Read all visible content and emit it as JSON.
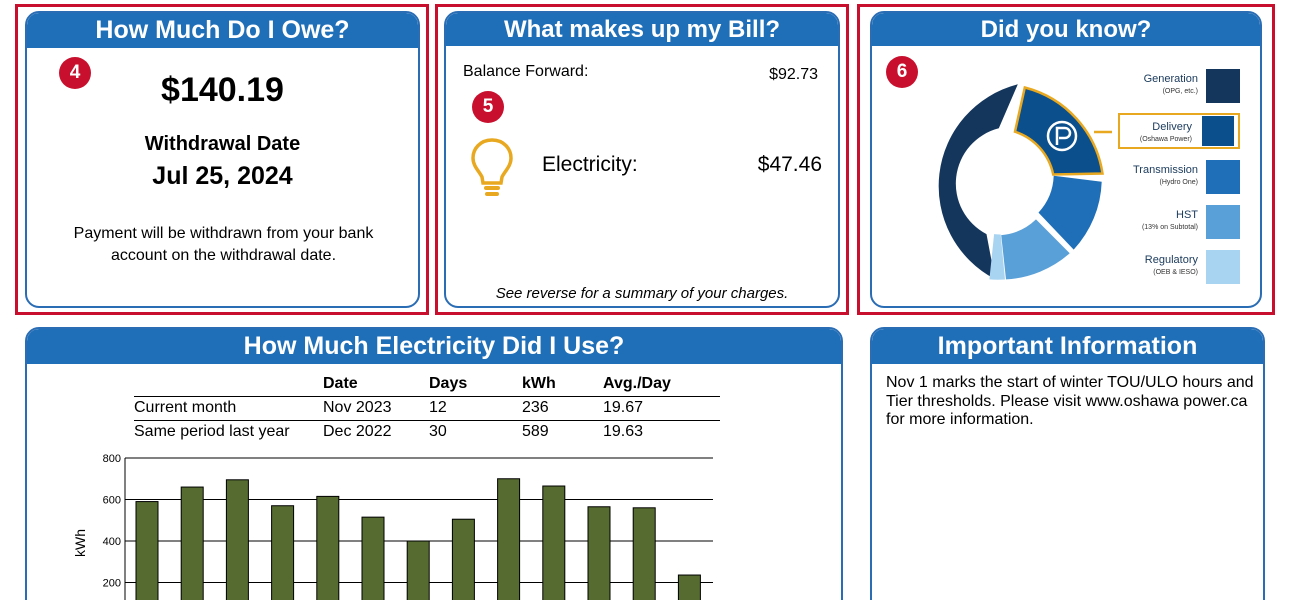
{
  "owe": {
    "title": "How Much Do I Owe?",
    "marker": "4",
    "amount": "$140.19",
    "withdrawal_label": "Withdrawal Date",
    "withdrawal_date": "Jul 25, 2024",
    "note": "Payment will be withdrawn from your bank account on the withdrawal date."
  },
  "bill": {
    "title": "What makes up my Bill?",
    "marker": "5",
    "balance_forward_label": "Balance Forward:",
    "balance_forward_value": "$92.73",
    "electricity_label": "Electricity:",
    "electricity_value": "$47.46",
    "footnote": "See reverse for a summary of your charges.",
    "icon": "lightbulb-icon",
    "icon_color": "#e8a820"
  },
  "did_you_know": {
    "title": "Did you know?",
    "marker": "6",
    "center_logo": "oshawa-power-logo",
    "highlight_color": "#e8a820",
    "legend": [
      {
        "name": "Generation",
        "sub": "(OPG, etc.)",
        "color": "#14365c"
      },
      {
        "name": "Delivery",
        "sub": "(Oshawa Power)",
        "color": "#0b4f8c"
      },
      {
        "name": "Transmission",
        "sub": "(Hydro One)",
        "color": "#1f6fb8"
      },
      {
        "name": "HST",
        "sub": "(13% on Subtotal)",
        "color": "#5aa0d8"
      },
      {
        "name": "Regulatory",
        "sub": "(OEB & IESO)",
        "color": "#a8d4f2"
      }
    ]
  },
  "usage": {
    "title": "How Much Electricity Did I Use?",
    "table": {
      "headers": [
        "",
        "Date",
        "Days",
        "kWh",
        "Avg./Day"
      ],
      "rows": [
        [
          "Current month",
          "Nov 2023",
          "12",
          "236",
          "19.67"
        ],
        [
          "Same period last year",
          "Dec 2022",
          "30",
          "589",
          "19.63"
        ]
      ]
    }
  },
  "chart_data": {
    "type": "bar",
    "title": "",
    "xlabel": "",
    "ylabel": "kWh",
    "ylim": [
      0,
      800
    ],
    "yticks": [
      "200",
      "400",
      "600",
      "800"
    ],
    "grid": true,
    "bar_color": "#556b2f",
    "values": [
      590,
      660,
      695,
      570,
      615,
      515,
      400,
      505,
      700,
      665,
      565,
      560,
      236
    ]
  },
  "info": {
    "title": "Important Information",
    "text": "Nov 1 marks the start of winter TOU/ULO hours and Tier thresholds. Please visit www.oshawa power.ca for more information."
  }
}
